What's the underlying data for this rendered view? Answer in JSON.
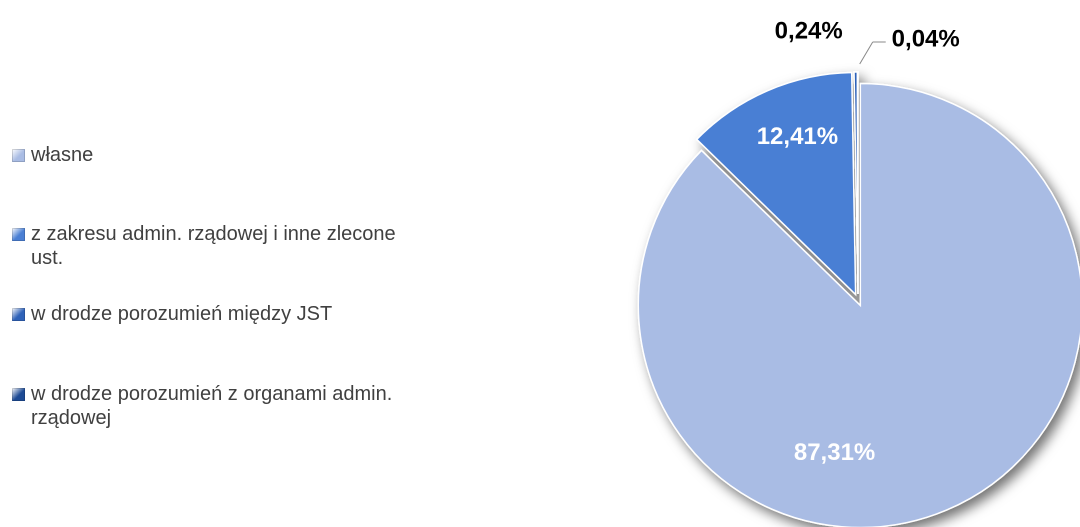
{
  "chart_data": {
    "type": "pie",
    "categories": [
      "własne",
      "z zakresu admin. rządowej i inne zlecone ust.",
      "w drodze porozumień między JST",
      "w drodze porozumień z organami admin. rządowej"
    ],
    "values": [
      87.31,
      12.41,
      0.24,
      0.04
    ],
    "value_labels": [
      "87,31%",
      "12,41%",
      "0,24%",
      "0,04%"
    ],
    "colors": [
      "#a9bce4",
      "#4a7fd4",
      "#2f62b8",
      "#1d4a94"
    ],
    "legend": "left"
  }
}
